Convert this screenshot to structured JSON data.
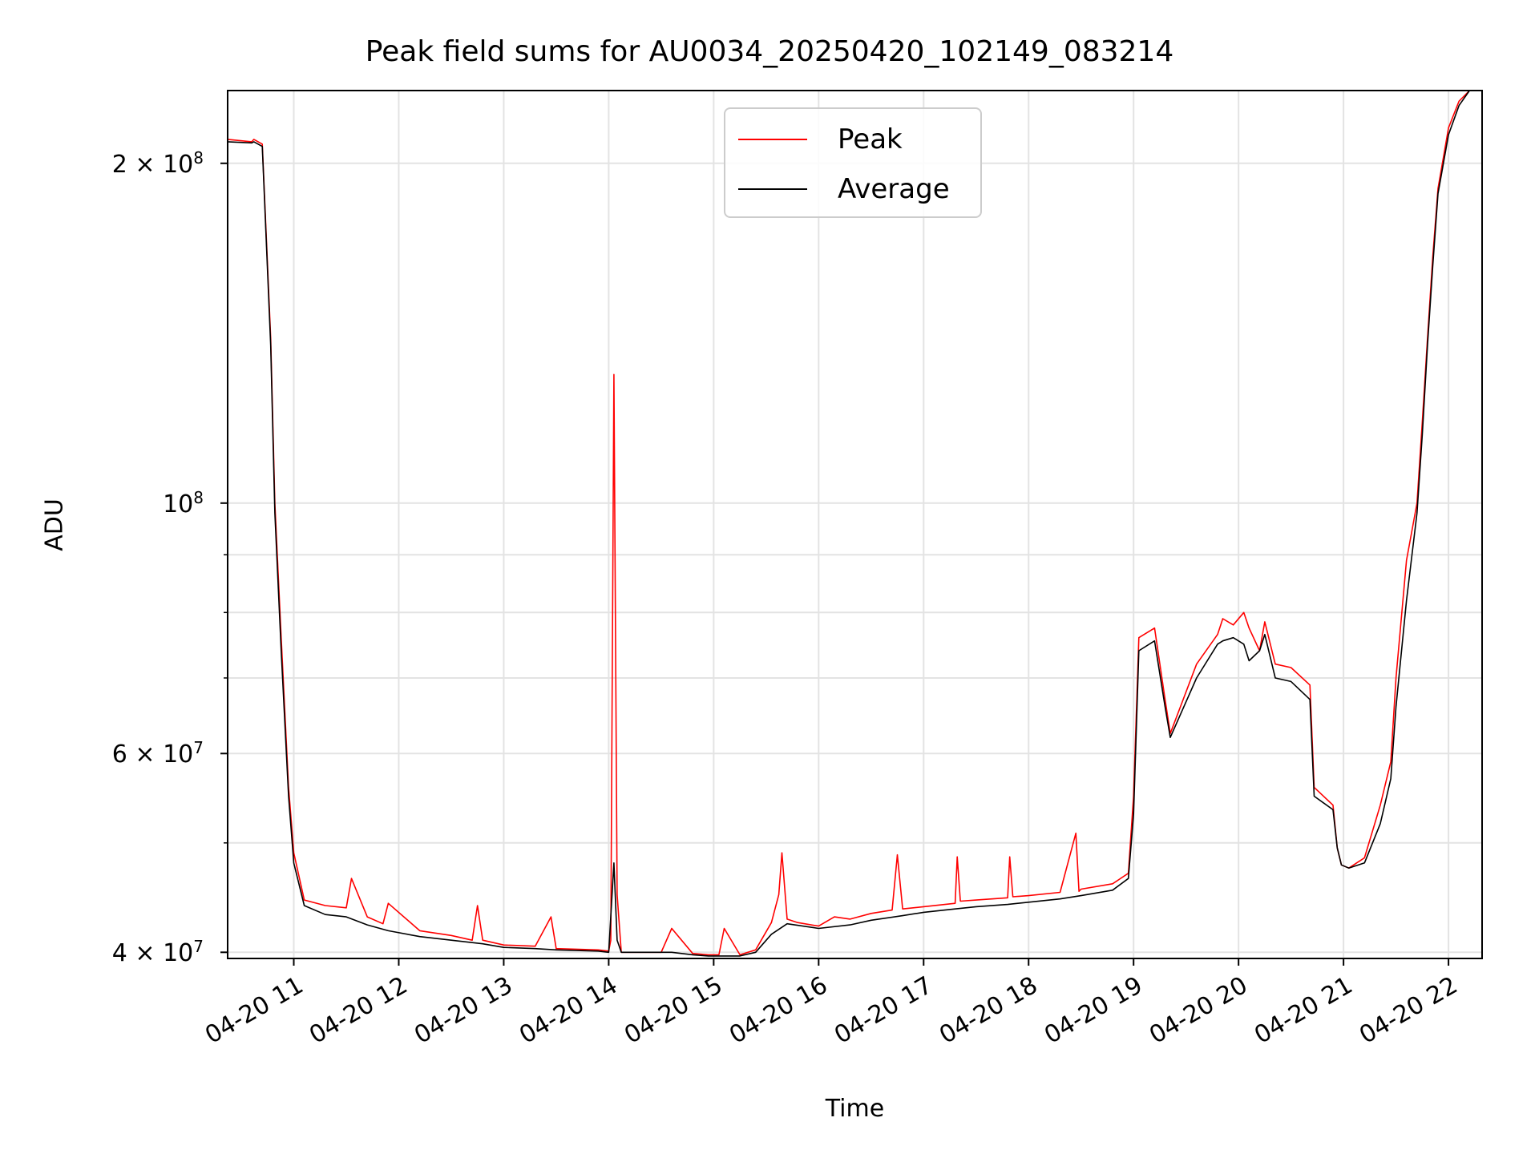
{
  "chart_data": {
    "type": "line",
    "title": "Peak field sums for AU0034_20250420_102149_083214",
    "xlabel": "Time",
    "ylabel": "ADU",
    "yscale": "log",
    "xlim": [
      10.37,
      22.32
    ],
    "ylim": [
      39500000,
      232000000
    ],
    "x_unit": "hour of 2025-04-20",
    "xticks": [
      {
        "value": 11,
        "label": "04-20 11"
      },
      {
        "value": 12,
        "label": "04-20 12"
      },
      {
        "value": 13,
        "label": "04-20 13"
      },
      {
        "value": 14,
        "label": "04-20 14"
      },
      {
        "value": 15,
        "label": "04-20 15"
      },
      {
        "value": 16,
        "label": "04-20 16"
      },
      {
        "value": 17,
        "label": "04-20 17"
      },
      {
        "value": 18,
        "label": "04-20 18"
      },
      {
        "value": 19,
        "label": "04-20 19"
      },
      {
        "value": 20,
        "label": "04-20 20"
      },
      {
        "value": 21,
        "label": "04-20 21"
      },
      {
        "value": 22,
        "label": "04-20 22"
      }
    ],
    "yticks": [
      {
        "value": 40000000,
        "mantissa": "4 × 10",
        "exp": "7"
      },
      {
        "value": 60000000,
        "mantissa": "6 × 10",
        "exp": "7"
      },
      {
        "value": 100000000,
        "mantissa": "10",
        "exp": "8"
      },
      {
        "value": 200000000,
        "mantissa": "2 × 10",
        "exp": "8"
      }
    ],
    "yminor_ticks": [
      50000000,
      70000000,
      80000000,
      90000000
    ],
    "grid": true,
    "legend_position": "top-center",
    "series": [
      {
        "name": "Peak",
        "color": "#ff0000",
        "x": [
          10.37,
          10.6,
          10.62,
          10.7,
          10.78,
          10.82,
          10.88,
          10.95,
          11.0,
          11.1,
          11.3,
          11.5,
          11.55,
          11.7,
          11.85,
          11.9,
          12.2,
          12.5,
          12.7,
          12.75,
          12.8,
          13.0,
          13.3,
          13.45,
          13.5,
          13.9,
          14.0,
          14.02,
          14.05,
          14.08,
          14.12,
          14.3,
          14.5,
          14.6,
          14.8,
          14.95,
          15.05,
          15.1,
          15.25,
          15.4,
          15.55,
          15.62,
          15.65,
          15.7,
          15.8,
          16.0,
          16.15,
          16.3,
          16.5,
          16.7,
          16.75,
          16.8,
          17.0,
          17.3,
          17.32,
          17.35,
          17.5,
          17.8,
          17.82,
          17.85,
          18.0,
          18.3,
          18.45,
          18.48,
          18.5,
          18.8,
          18.95,
          19.0,
          19.05,
          19.2,
          19.3,
          19.35,
          19.6,
          19.8,
          19.85,
          19.95,
          20.05,
          20.1,
          20.2,
          20.25,
          20.35,
          20.5,
          20.68,
          20.72,
          20.9,
          20.94,
          20.98,
          21.05,
          21.2,
          21.35,
          21.45,
          21.5,
          21.6,
          21.7,
          21.75,
          21.8,
          21.85,
          21.9,
          22.0,
          22.1,
          22.2,
          22.3
        ],
        "y": [
          210000000,
          209000000,
          210000000,
          208000000,
          140000000,
          100000000,
          76000000,
          56000000,
          49000000,
          44500000,
          44000000,
          43800000,
          46500000,
          43000000,
          42400000,
          44200000,
          41800000,
          41400000,
          41000000,
          44000000,
          41000000,
          40600000,
          40500000,
          43000000,
          40300000,
          40200000,
          40100000,
          41000000,
          130000000,
          45000000,
          40000000,
          40000000,
          40000000,
          42000000,
          39900000,
          39800000,
          39800000,
          42000000,
          39800000,
          40200000,
          42500000,
          45000000,
          49000000,
          42800000,
          42500000,
          42200000,
          43000000,
          42800000,
          43300000,
          43600000,
          48800000,
          43700000,
          43900000,
          44200000,
          48600000,
          44400000,
          44500000,
          44700000,
          48600000,
          44800000,
          44900000,
          45200000,
          51000000,
          45300000,
          45500000,
          46000000,
          47000000,
          55000000,
          76000000,
          77500000,
          67000000,
          62500000,
          72000000,
          76500000,
          79000000,
          78000000,
          80000000,
          77500000,
          74000000,
          78500000,
          72000000,
          71500000,
          69000000,
          56000000,
          54000000,
          49500000,
          47800000,
          47500000,
          48500000,
          54000000,
          59000000,
          70000000,
          89000000,
          100000000,
          118000000,
          140000000,
          165000000,
          190000000,
          215000000,
          227000000,
          232000000,
          232000000
        ]
      },
      {
        "name": "Average",
        "color": "#000000",
        "x": [
          10.37,
          10.6,
          10.62,
          10.7,
          10.78,
          10.82,
          10.88,
          10.95,
          11.0,
          11.1,
          11.3,
          11.5,
          11.7,
          11.9,
          12.2,
          12.5,
          12.8,
          13.0,
          13.3,
          13.5,
          13.9,
          14.0,
          14.05,
          14.08,
          14.12,
          14.3,
          14.6,
          14.8,
          14.95,
          15.05,
          15.25,
          15.4,
          15.55,
          15.7,
          16.0,
          16.3,
          16.5,
          16.8,
          17.0,
          17.3,
          17.5,
          17.8,
          18.0,
          18.3,
          18.5,
          18.8,
          18.95,
          19.0,
          19.05,
          19.2,
          19.3,
          19.35,
          19.6,
          19.8,
          19.85,
          19.95,
          20.05,
          20.1,
          20.2,
          20.25,
          20.35,
          20.5,
          20.68,
          20.72,
          20.9,
          20.94,
          20.98,
          21.05,
          21.2,
          21.35,
          21.45,
          21.5,
          21.6,
          21.7,
          21.75,
          21.8,
          21.85,
          21.9,
          22.0,
          22.1,
          22.2,
          22.3
        ],
        "y": [
          209000000,
          208500000,
          209000000,
          207000000,
          138000000,
          98000000,
          74000000,
          55000000,
          48000000,
          44000000,
          43200000,
          43000000,
          42300000,
          41800000,
          41300000,
          41000000,
          40700000,
          40400000,
          40300000,
          40200000,
          40100000,
          40000000,
          48000000,
          41000000,
          40000000,
          40000000,
          40000000,
          39800000,
          39700000,
          39700000,
          39700000,
          40000000,
          41500000,
          42400000,
          42000000,
          42300000,
          42700000,
          43100000,
          43400000,
          43700000,
          43900000,
          44100000,
          44300000,
          44600000,
          44900000,
          45400000,
          46500000,
          53000000,
          74000000,
          75500000,
          66000000,
          62000000,
          70000000,
          75000000,
          75500000,
          76000000,
          75000000,
          72500000,
          74000000,
          76500000,
          70000000,
          69500000,
          67000000,
          55000000,
          53500000,
          49500000,
          47800000,
          47500000,
          48000000,
          52000000,
          57000000,
          66000000,
          82000000,
          98000000,
          115000000,
          138000000,
          162000000,
          188000000,
          212000000,
          225000000,
          232000000,
          232000000
        ]
      }
    ]
  }
}
